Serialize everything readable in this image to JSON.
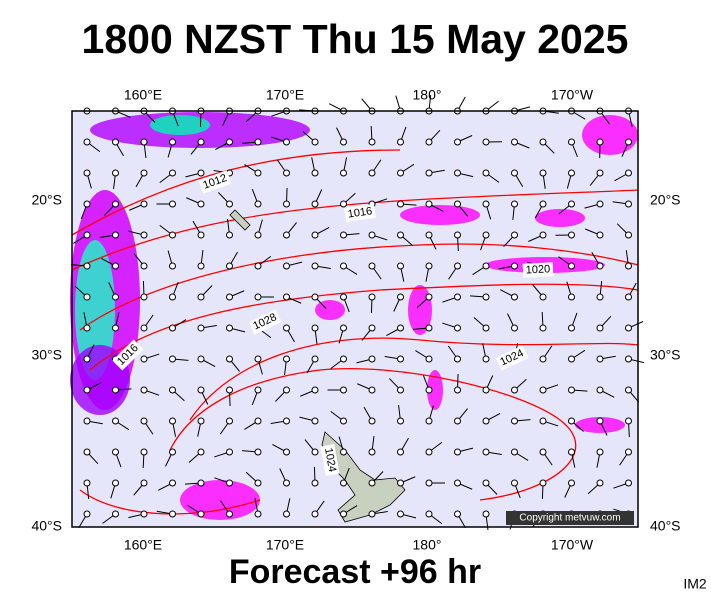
{
  "header": {
    "title": "1800 NZST Thu 15 May 2025"
  },
  "axes": {
    "lon_top": [
      "160°E",
      "170°E",
      "180°",
      "170°W"
    ],
    "lon_bottom": [
      "160°E",
      "170°E",
      "180°",
      "170°W"
    ],
    "lat_left": [
      "20°S",
      "30°S",
      "40°S"
    ],
    "lat_right": [
      "20°S",
      "30°S",
      "40°S"
    ]
  },
  "contours": [
    "1012",
    "1016",
    "1020",
    "1028",
    "1016",
    "1024",
    "1024"
  ],
  "footer": {
    "forecast": "Forecast +96 hr",
    "copyright": "Copyright metvuw.com",
    "image_id": "IM2"
  }
}
